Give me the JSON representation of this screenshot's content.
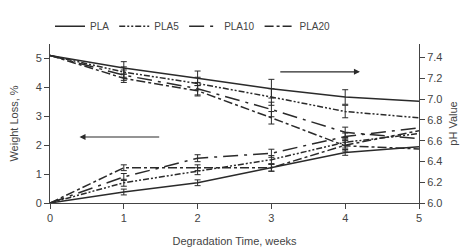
{
  "chart_data": {
    "type": "line",
    "xlabel": "Degradation Time, weeks",
    "ylabel": "Weight Loss, %",
    "y2label": "pH Value",
    "x": [
      0,
      1,
      2,
      3,
      4,
      5
    ],
    "xlim": [
      0,
      5
    ],
    "xticks": [
      0,
      1,
      2,
      3,
      4,
      5
    ],
    "ylim": [
      0,
      5.5
    ],
    "yticks": [
      0,
      1,
      2,
      3,
      4,
      5
    ],
    "y2lim": [
      6.0,
      7.53
    ],
    "y2ticks": [
      {
        "value": 6.0,
        "label": "6.0"
      },
      6.2,
      6.4,
      6.6,
      6.8,
      {
        "value": 7.0,
        "label": "7.0"
      },
      7.2,
      7.4
    ],
    "grid": false,
    "legend": "top",
    "error_x": [
      1,
      2,
      3,
      4
    ],
    "series": [
      {
        "name": "PLA",
        "color": "#2a2a2a",
        "line_style": "solid",
        "values": [
          0,
          0.38,
          0.7,
          1.22,
          1.75,
          1.95
        ],
        "errors": [
          0.1,
          0.1,
          0.12,
          0.1
        ]
      },
      {
        "name": "PLA5",
        "color": "#2a2a2a",
        "line_style": "dashdotdot",
        "values": [
          0,
          0.7,
          1.1,
          1.5,
          2.1,
          2.4
        ],
        "errors": [
          0.12,
          0.12,
          0.14,
          0.12
        ]
      },
      {
        "name": "PLA10",
        "color": "#2a2a2a",
        "line_style": "longdashdot",
        "values": [
          0,
          0.9,
          1.55,
          1.72,
          2.3,
          2.6
        ],
        "errors": [
          0.12,
          0.12,
          0.14,
          0.12
        ]
      },
      {
        "name": "PLA20",
        "color": "#2a2a2a",
        "line_style": "dashdot",
        "values": [
          0,
          1.22,
          1.22,
          1.22,
          2.0,
          2.5
        ],
        "errors": [
          0.1,
          0.1,
          0.12,
          0.1
        ]
      },
      {
        "axis": "y2",
        "color": "#2a2a2a",
        "line_style": "solid",
        "values": [
          7.42,
          7.3,
          7.2,
          7.1,
          7.02,
          6.98
        ],
        "errors": [
          0.06,
          0.07,
          0.09,
          0.07
        ]
      },
      {
        "axis": "y2",
        "color": "#2a2a2a",
        "line_style": "dashdotdot",
        "values": [
          7.42,
          7.26,
          7.15,
          7.02,
          6.88,
          6.82
        ],
        "errors": [
          0.05,
          0.06,
          0.08,
          0.06
        ]
      },
      {
        "axis": "y2",
        "color": "#2a2a2a",
        "line_style": "longdashdot",
        "values": [
          7.42,
          7.23,
          7.1,
          6.9,
          6.68,
          6.62
        ],
        "errors": [
          0.05,
          0.06,
          0.07,
          0.05
        ]
      },
      {
        "axis": "y2",
        "color": "#2a2a2a",
        "line_style": "dashdot",
        "values": [
          7.42,
          7.2,
          7.08,
          6.82,
          6.55,
          6.52
        ],
        "errors": [
          0.04,
          0.05,
          0.06,
          0.05
        ]
      }
    ]
  }
}
